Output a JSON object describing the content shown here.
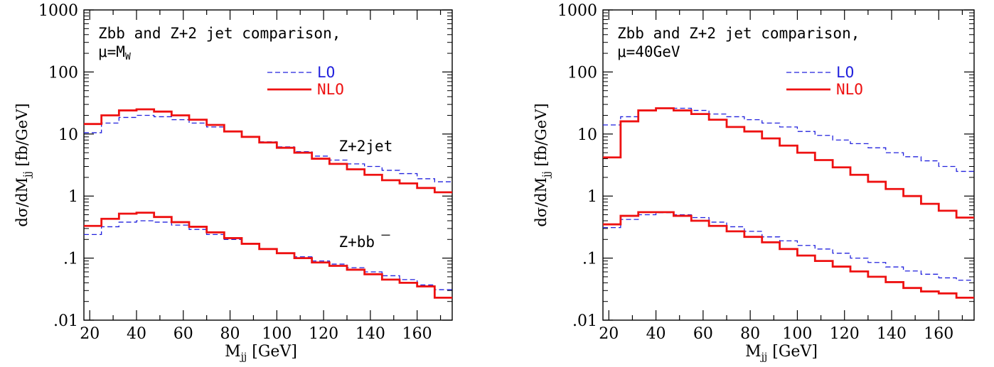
{
  "chart_data": [
    {
      "type": "line",
      "scale": "log-y",
      "xlim": [
        17.5,
        175
      ],
      "ylim": [
        0.01,
        1000
      ],
      "xticks": [
        "20",
        "40",
        "60",
        "80",
        "100",
        "120",
        "140",
        "160"
      ],
      "yticks": [
        "1000",
        "100",
        "10",
        "1",
        ".1",
        ".01"
      ],
      "xlabel": "M",
      "xlabel_sub": "jj",
      "xlabel_unit": "[GeV]",
      "ylabel": "dσ/dM",
      "ylabel_sub": "jj",
      "ylabel_unit": "[fb/GeV]",
      "title_line1": "Zbb and Z+2 jet comparison,",
      "title_line2": "μ=M",
      "title_line2_sub": "W",
      "legend": {
        "lo": "LO",
        "nlo": "NLO",
        "lo_color": "#2222dd",
        "nlo_color": "#ee1111"
      },
      "bin_edges": [
        17.5,
        25,
        32.5,
        40,
        47.5,
        55,
        62.5,
        70,
        77.5,
        85,
        92.5,
        100,
        107.5,
        115,
        122.5,
        130,
        137.5,
        145,
        152.5,
        160,
        167.5,
        175
      ],
      "groups": [
        {
          "label": "Z+2jet",
          "lo": [
            10.5,
            15,
            18.5,
            20,
            19,
            17,
            15,
            13,
            11,
            9,
            7.5,
            6.2,
            5.2,
            4.4,
            3.8,
            3.3,
            3.0,
            2.6,
            2.3,
            1.9,
            1.7
          ],
          "nlo": [
            14.5,
            20,
            24,
            25,
            23,
            20,
            17,
            14,
            11,
            9,
            7.3,
            6.0,
            5.0,
            4.0,
            3.3,
            2.7,
            2.2,
            1.8,
            1.6,
            1.35,
            1.15
          ]
        },
        {
          "label": "Z+b",
          "label_bar": "b",
          "lo": [
            0.24,
            0.32,
            0.38,
            0.4,
            0.38,
            0.34,
            0.29,
            0.24,
            0.2,
            0.17,
            0.14,
            0.12,
            0.105,
            0.09,
            0.08,
            0.07,
            0.06,
            0.052,
            0.045,
            0.037,
            0.031
          ],
          "nlo": [
            0.33,
            0.43,
            0.52,
            0.54,
            0.46,
            0.38,
            0.32,
            0.26,
            0.21,
            0.17,
            0.14,
            0.12,
            0.1,
            0.085,
            0.075,
            0.065,
            0.055,
            0.045,
            0.04,
            0.035,
            0.023
          ]
        }
      ]
    },
    {
      "type": "line",
      "scale": "log-y",
      "xlim": [
        17.5,
        175
      ],
      "ylim": [
        0.01,
        1000
      ],
      "xticks": [
        "20",
        "40",
        "60",
        "80",
        "100",
        "120",
        "140",
        "160"
      ],
      "yticks": [
        "1000",
        "100",
        "10",
        "1",
        ".1",
        ".01"
      ],
      "xlabel": "M",
      "xlabel_sub": "jj",
      "xlabel_unit": "[GeV]",
      "ylabel": "dσ/dM",
      "ylabel_sub": "jj",
      "ylabel_unit": "[fb/GeV]",
      "title_line1": "Zbb and Z+2 jet comparison,",
      "title_line2": "μ=40GeV",
      "title_line2_sub": "",
      "legend": {
        "lo": "LO",
        "nlo": "NLO",
        "lo_color": "#2222dd",
        "nlo_color": "#ee1111"
      },
      "bin_edges": [
        17.5,
        25,
        32.5,
        40,
        47.5,
        55,
        62.5,
        70,
        77.5,
        85,
        92.5,
        100,
        107.5,
        115,
        122.5,
        130,
        137.5,
        145,
        152.5,
        160,
        167.5,
        175
      ],
      "groups": [
        {
          "label": "",
          "lo": [
            14,
            19,
            24,
            26,
            26,
            24,
            21,
            19,
            17,
            15,
            13,
            11,
            9.5,
            8,
            7,
            6,
            5,
            4.3,
            3.7,
            3.0,
            2.5
          ],
          "nlo": [
            4.2,
            16,
            24,
            26,
            24,
            21,
            17,
            13,
            11,
            8.5,
            6.5,
            5,
            3.8,
            2.9,
            2.2,
            1.7,
            1.3,
            1.0,
            0.75,
            0.58,
            0.45
          ]
        },
        {
          "label": "",
          "lo": [
            0.31,
            0.42,
            0.5,
            0.54,
            0.5,
            0.45,
            0.38,
            0.32,
            0.27,
            0.22,
            0.19,
            0.16,
            0.14,
            0.12,
            0.1,
            0.085,
            0.072,
            0.062,
            0.055,
            0.048,
            0.044
          ],
          "nlo": [
            0.35,
            0.48,
            0.55,
            0.55,
            0.48,
            0.4,
            0.33,
            0.27,
            0.22,
            0.18,
            0.14,
            0.11,
            0.09,
            0.073,
            0.061,
            0.05,
            0.041,
            0.033,
            0.029,
            0.027,
            0.023
          ]
        }
      ]
    }
  ]
}
